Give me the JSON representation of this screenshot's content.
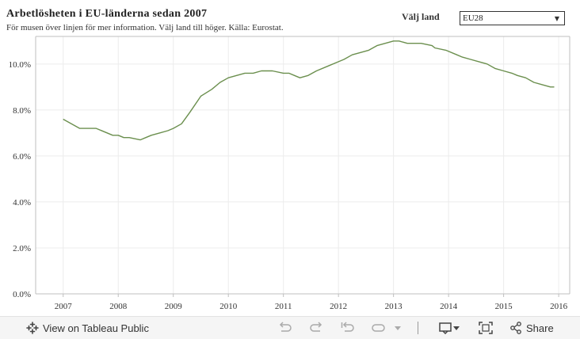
{
  "title": "Arbetlösheten i EU-länderna sedan 2007",
  "subtitle": "För musen över linjen för mer information. Välj land till höger. Källa: Eurostat.",
  "filter": {
    "label": "Välj land",
    "selected": "EU28"
  },
  "colors": {
    "line": "#6b8f4e",
    "grid": "#ececec",
    "axis": "#bfbfbf",
    "text": "#333333"
  },
  "chart_data": {
    "type": "line",
    "title": "Arbetlösheten i EU-länderna sedan 2007",
    "xlabel": "",
    "ylabel": "",
    "xlim": [
      2006.5,
      2016.2
    ],
    "ylim": [
      0,
      11.2
    ],
    "grid": true,
    "x_ticks": [
      2007,
      2008,
      2009,
      2010,
      2011,
      2012,
      2013,
      2014,
      2015,
      2016
    ],
    "x_tick_labels": [
      "2007",
      "2008",
      "2009",
      "2010",
      "2011",
      "2012",
      "2013",
      "2014",
      "2015",
      "2016"
    ],
    "y_ticks": [
      0,
      2,
      4,
      6,
      8,
      10
    ],
    "y_tick_labels": [
      "0.0%",
      "2.0%",
      "4.0%",
      "6.0%",
      "8.0%",
      "10.0%"
    ],
    "series": [
      {
        "name": "EU28",
        "x": [
          2007.0,
          2007.3,
          2007.6,
          2007.9,
          2008.0,
          2008.1,
          2008.2,
          2008.4,
          2008.5,
          2008.6,
          2008.75,
          2008.9,
          2009.0,
          2009.15,
          2009.3,
          2009.5,
          2009.7,
          2009.85,
          2010.0,
          2010.15,
          2010.3,
          2010.45,
          2010.6,
          2010.8,
          2011.0,
          2011.1,
          2011.2,
          2011.3,
          2011.45,
          2011.6,
          2011.8,
          2012.0,
          2012.1,
          2012.25,
          2012.4,
          2012.55,
          2012.7,
          2012.85,
          2013.0,
          2013.1,
          2013.25,
          2013.35,
          2013.5,
          2013.7,
          2013.75,
          2013.95,
          2014.15,
          2014.25,
          2014.4,
          2014.55,
          2014.7,
          2014.85,
          2015.0,
          2015.15,
          2015.25,
          2015.4,
          2015.55,
          2015.7,
          2015.85,
          2015.92
        ],
        "y": [
          7.6,
          7.2,
          7.2,
          6.9,
          6.9,
          6.8,
          6.8,
          6.7,
          6.8,
          6.9,
          7.0,
          7.1,
          7.2,
          7.4,
          7.9,
          8.6,
          8.9,
          9.2,
          9.4,
          9.5,
          9.6,
          9.6,
          9.7,
          9.7,
          9.6,
          9.6,
          9.5,
          9.4,
          9.5,
          9.7,
          9.9,
          10.1,
          10.2,
          10.4,
          10.5,
          10.6,
          10.8,
          10.9,
          11.0,
          11.0,
          10.9,
          10.9,
          10.9,
          10.8,
          10.7,
          10.6,
          10.4,
          10.3,
          10.2,
          10.1,
          10.0,
          9.8,
          9.7,
          9.6,
          9.5,
          9.4,
          9.2,
          9.1,
          9.0,
          9.0
        ]
      }
    ]
  },
  "toolbar": {
    "view_label": "View on Tableau Public",
    "share_label": "Share"
  }
}
